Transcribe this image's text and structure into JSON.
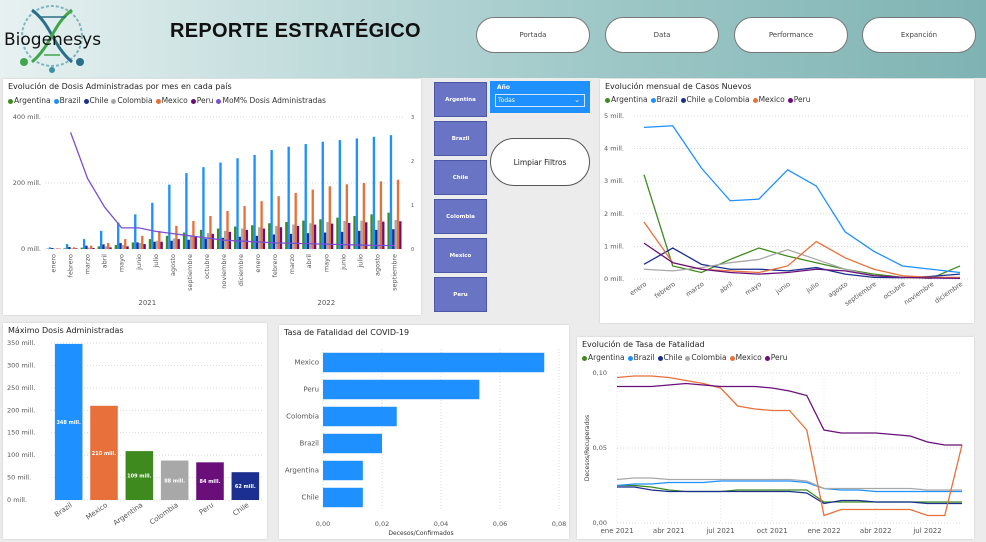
{
  "header": {
    "logo_text": "Biogenesys",
    "title": "REPORTE ESTRATÉGICO",
    "nav": [
      "Portada",
      "Data",
      "Performance",
      "Expanción"
    ]
  },
  "slicers": {
    "countries": [
      "Argentina",
      "Brazil",
      "Chile",
      "Colombia",
      "Mexico",
      "Peru"
    ],
    "year_label": "Año",
    "year_value": "Todas",
    "clear_label": "Limpiar Filtros"
  },
  "colors": {
    "Argentina": "#3f8a1e",
    "Brazil": "#1e90ff",
    "Chile": "#1a2f8f",
    "Colombia": "#a8a8a8",
    "Mexico": "#e8703a",
    "Peru": "#6a0f7a",
    "MoM": "#7b4fd0"
  },
  "chart_data": [
    {
      "id": "dosis",
      "type": "bar",
      "title": "Evolución de Dosis Administradas por mes en cada país",
      "legend": [
        "Argentina",
        "Brazil",
        "Chile",
        "Colombia",
        "Mexico",
        "Peru",
        "MoM% Dosis Administradas"
      ],
      "categories": [
        "enero",
        "febrero",
        "marzo",
        "abril",
        "mayo",
        "junio",
        "julio",
        "agosto",
        "septiembre",
        "octubre",
        "noviembre",
        "diciembre",
        "enero",
        "febrero",
        "marzo",
        "abril",
        "mayo",
        "junio",
        "julio",
        "agosto",
        "septiembre"
      ],
      "groups": [
        {
          "label": "2021",
          "from": 0,
          "to": 11
        },
        {
          "label": "2022",
          "from": 12,
          "to": 20
        }
      ],
      "yticks": [
        "0 mill.",
        "200 mill.",
        "400 mill."
      ],
      "ylim": [
        0,
        400
      ],
      "y2ticks": [
        "0",
        "1",
        "2",
        "3"
      ],
      "y2lim": [
        0,
        3
      ],
      "series": [
        {
          "name": "Argentina",
          "values": [
            1,
            2,
            4,
            8,
            12,
            20,
            30,
            40,
            50,
            58,
            62,
            68,
            72,
            78,
            82,
            86,
            90,
            95,
            100,
            105,
            110
          ]
        },
        {
          "name": "Brazil",
          "values": [
            5,
            15,
            30,
            55,
            80,
            105,
            140,
            195,
            230,
            248,
            262,
            275,
            285,
            300,
            310,
            318,
            325,
            330,
            335,
            340,
            345
          ]
        },
        {
          "name": "Chile",
          "values": [
            3,
            6,
            10,
            14,
            18,
            20,
            22,
            25,
            28,
            31,
            34,
            37,
            40,
            44,
            46,
            48,
            50,
            52,
            55,
            58,
            60
          ]
        },
        {
          "name": "Colombia",
          "values": [
            1,
            2,
            4,
            8,
            12,
            18,
            25,
            32,
            40,
            48,
            55,
            62,
            66,
            70,
            74,
            78,
            82,
            85,
            86,
            87,
            88
          ]
        },
        {
          "name": "Mexico",
          "values": [
            2,
            5,
            10,
            18,
            30,
            40,
            55,
            70,
            85,
            100,
            115,
            130,
            145,
            160,
            170,
            180,
            190,
            196,
            200,
            205,
            210
          ]
        },
        {
          "name": "Peru",
          "values": [
            1,
            2,
            3,
            5,
            8,
            15,
            22,
            30,
            38,
            46,
            52,
            58,
            62,
            66,
            70,
            74,
            77,
            79,
            81,
            83,
            84
          ]
        }
      ],
      "line": {
        "name": "MoM% Dosis Administradas",
        "values": [
          null,
          2.65,
          1.6,
          0.95,
          0.48,
          0.48,
          0.4,
          0.35,
          0.3,
          0.25,
          0.2,
          0.18,
          0.16,
          0.14,
          0.13,
          0.12,
          0.11,
          0.1,
          0.09,
          0.08,
          0.08
        ]
      }
    },
    {
      "id": "casos",
      "type": "line",
      "title": "Evolución mensual de Casos Nuevos",
      "legend": [
        "Argentina",
        "Brazil",
        "Chile",
        "Colombia",
        "Mexico",
        "Peru"
      ],
      "categories": [
        "enero",
        "febrero",
        "marzo",
        "abril",
        "mayo",
        "junio",
        "julio",
        "agosto",
        "septiembre",
        "octubre",
        "noviembre",
        "diciembre"
      ],
      "yticks": [
        "0 mill.",
        "1 mill.",
        "2 mill.",
        "3 mill.",
        "4 mill.",
        "5 mill."
      ],
      "ylim": [
        0,
        5
      ],
      "series": [
        {
          "name": "Argentina",
          "values": [
            3.2,
            0.4,
            0.2,
            0.6,
            0.95,
            0.7,
            0.5,
            0.3,
            0.15,
            0.05,
            0.02,
            0.4
          ]
        },
        {
          "name": "Brazil",
          "values": [
            4.65,
            4.7,
            3.4,
            2.4,
            2.45,
            3.35,
            2.85,
            1.45,
            0.85,
            0.4,
            0.3,
            0.2
          ]
        },
        {
          "name": "Chile",
          "values": [
            0.45,
            0.95,
            0.45,
            0.3,
            0.3,
            0.25,
            0.35,
            0.15,
            0.05,
            0.04,
            0.08,
            0.15
          ]
        },
        {
          "name": "Colombia",
          "values": [
            0.3,
            0.25,
            0.35,
            0.5,
            0.6,
            0.9,
            0.6,
            0.3,
            0.1,
            0.05,
            0.03,
            0.03
          ]
        },
        {
          "name": "Mexico",
          "values": [
            1.75,
            0.5,
            0.3,
            0.25,
            0.2,
            0.4,
            1.15,
            0.65,
            0.3,
            0.1,
            0.05,
            0.05
          ]
        },
        {
          "name": "Peru",
          "values": [
            1.1,
            0.5,
            0.3,
            0.2,
            0.15,
            0.2,
            0.3,
            0.25,
            0.1,
            0.05,
            0.03,
            0.02
          ]
        }
      ]
    },
    {
      "id": "maximo",
      "type": "bar",
      "title": "Máximo Dosis Administradas",
      "categories": [
        "Brazil",
        "Mexico",
        "Argentina",
        "Colombia",
        "Peru",
        "Chile"
      ],
      "values": [
        348,
        210,
        109,
        88,
        84,
        62
      ],
      "data_labels": [
        "348 mill.",
        "210 mill.",
        "109 mill.",
        "88 mill.",
        "84 mill.",
        "62 mill."
      ],
      "yticks": [
        "0 mill.",
        "50 mill.",
        "100 mill.",
        "150 mill.",
        "200 mill.",
        "250 mill.",
        "300 mill.",
        "350 mill."
      ],
      "ylim": [
        0,
        350
      ]
    },
    {
      "id": "fatalidad",
      "type": "bar",
      "title": "Tasa de Fatalidad del COVID-19",
      "categories": [
        "Mexico",
        "Peru",
        "Colombia",
        "Brazil",
        "Argentina",
        "Chile"
      ],
      "values": [
        0.075,
        0.053,
        0.025,
        0.02,
        0.0135,
        0.0135
      ],
      "xticks": [
        "0,00",
        "0,02",
        "0,04",
        "0,06",
        "0,08"
      ],
      "xlim": [
        0,
        0.08
      ],
      "xlabel": "Decesos/Confirmados"
    },
    {
      "id": "evolucion_fatalidad",
      "type": "line",
      "title": "Evolución de Tasa de Fatalidad",
      "legend": [
        "Argentina",
        "Brazil",
        "Chile",
        "Colombia",
        "Mexico",
        "Peru"
      ],
      "ylabel": "Decesos/Recuperados",
      "yticks": [
        "0,00",
        "0,05",
        "0,10"
      ],
      "ylim": [
        0,
        0.1
      ],
      "xticks": [
        "ene 2021",
        "abr 2021",
        "jul 2021",
        "oct 2021",
        "ene 2022",
        "abr 2022",
        "jul 2022"
      ],
      "x": [
        "ene 2021",
        "feb 2021",
        "mar 2021",
        "abr 2021",
        "may 2021",
        "jun 2021",
        "jul 2021",
        "ago 2021",
        "sep 2021",
        "oct 2021",
        "nov 2021",
        "dic 2021",
        "ene 2022",
        "feb 2022",
        "mar 2022",
        "abr 2022",
        "may 2022",
        "jun 2022",
        "jul 2022",
        "ago 2022",
        "sep 2022"
      ],
      "series": [
        {
          "name": "Argentina",
          "values": [
            0.025,
            0.025,
            0.024,
            0.022,
            0.021,
            0.021,
            0.021,
            0.022,
            0.022,
            0.022,
            0.022,
            0.022,
            0.014,
            0.014,
            0.014,
            0.014,
            0.014,
            0.014,
            0.014,
            0.014,
            0.014
          ]
        },
        {
          "name": "Brazil",
          "values": [
            0.025,
            0.026,
            0.026,
            0.027,
            0.027,
            0.027,
            0.028,
            0.028,
            0.028,
            0.028,
            0.028,
            0.027,
            0.023,
            0.022,
            0.022,
            0.021,
            0.021,
            0.021,
            0.021,
            0.021,
            0.021
          ]
        },
        {
          "name": "Chile",
          "values": [
            0.024,
            0.024,
            0.022,
            0.021,
            0.021,
            0.021,
            0.021,
            0.021,
            0.021,
            0.021,
            0.021,
            0.02,
            0.013,
            0.015,
            0.015,
            0.014,
            0.014,
            0.014,
            0.013,
            0.013,
            0.013
          ]
        },
        {
          "name": "Colombia",
          "values": [
            0.029,
            0.03,
            0.03,
            0.029,
            0.029,
            0.029,
            0.029,
            0.029,
            0.029,
            0.029,
            0.029,
            0.028,
            0.023,
            0.023,
            0.023,
            0.023,
            0.023,
            0.023,
            0.022,
            0.022,
            0.022
          ]
        },
        {
          "name": "Mexico",
          "values": [
            0.097,
            0.098,
            0.098,
            0.097,
            0.095,
            0.093,
            0.09,
            0.078,
            0.076,
            0.075,
            0.075,
            0.062,
            0.005,
            0.009,
            0.009,
            0.009,
            0.009,
            0.009,
            0.005,
            0.005,
            0.052
          ]
        },
        {
          "name": "Peru",
          "values": [
            0.091,
            0.091,
            0.091,
            0.092,
            0.093,
            0.092,
            0.091,
            0.091,
            0.091,
            0.09,
            0.088,
            0.085,
            0.062,
            0.06,
            0.06,
            0.06,
            0.059,
            0.058,
            0.054,
            0.052,
            0.052
          ]
        }
      ]
    }
  ]
}
